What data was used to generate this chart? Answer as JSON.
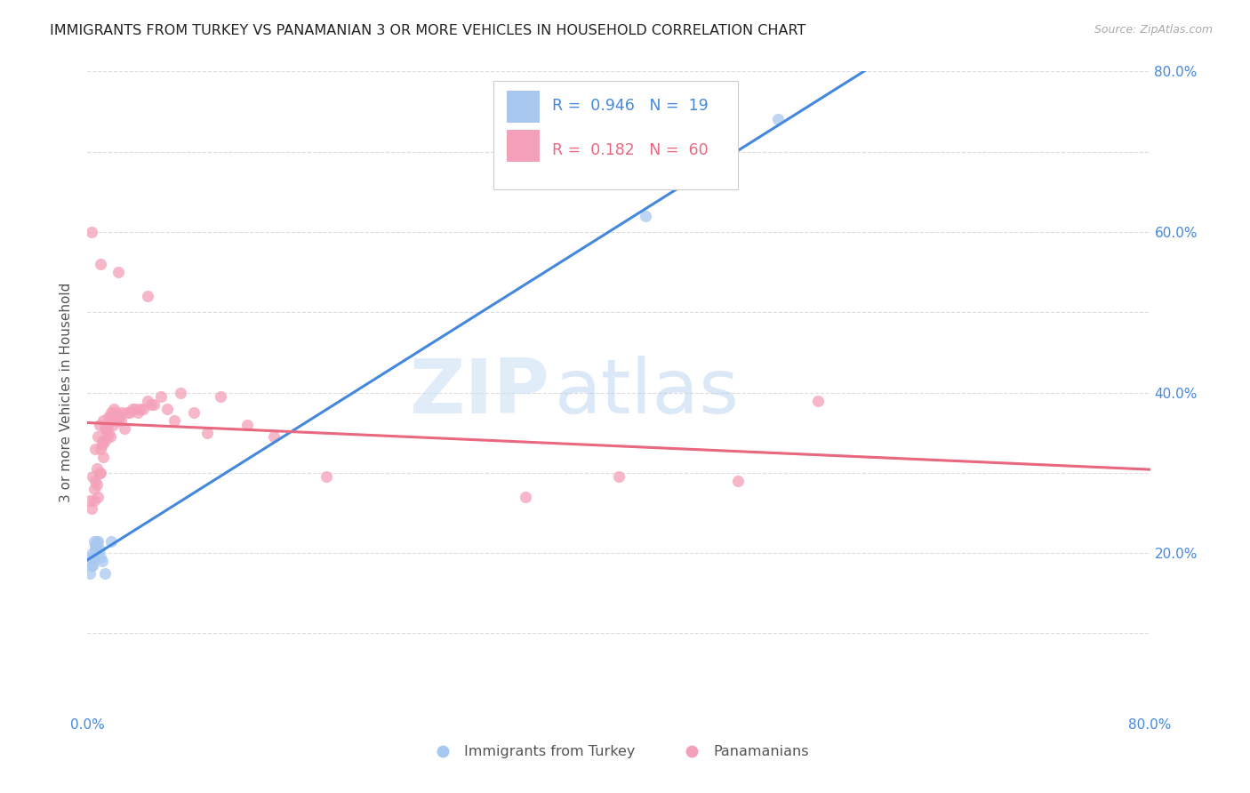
{
  "title": "IMMIGRANTS FROM TURKEY VS PANAMANIAN 3 OR MORE VEHICLES IN HOUSEHOLD CORRELATION CHART",
  "source": "Source: ZipAtlas.com",
  "ylabel": "3 or more Vehicles in Household",
  "xlim": [
    0.0,
    0.8
  ],
  "ylim": [
    0.0,
    0.8
  ],
  "blue_color": "#a8c8f0",
  "pink_color": "#f4a0b8",
  "blue_line_color": "#4488dd",
  "pink_line_color": "#e86880",
  "pink_dashed_color": "#f0b0c0",
  "legend_r_blue": "0.946",
  "legend_n_blue": "19",
  "legend_r_pink": "0.182",
  "legend_n_pink": "60",
  "legend_label_blue": "Immigrants from Turkey",
  "legend_label_pink": "Panamanians",
  "watermark_zip": "ZIP",
  "watermark_atlas": "atlas",
  "blue_points_x": [
    0.002,
    0.003,
    0.003,
    0.004,
    0.004,
    0.005,
    0.005,
    0.006,
    0.006,
    0.007,
    0.007,
    0.008,
    0.009,
    0.01,
    0.011,
    0.013,
    0.018,
    0.42,
    0.52
  ],
  "blue_points_y": [
    0.175,
    0.185,
    0.195,
    0.2,
    0.185,
    0.215,
    0.195,
    0.21,
    0.205,
    0.215,
    0.21,
    0.215,
    0.205,
    0.195,
    0.19,
    0.175,
    0.215,
    0.62,
    0.74
  ],
  "pink_points_x": [
    0.002,
    0.003,
    0.004,
    0.005,
    0.005,
    0.006,
    0.006,
    0.007,
    0.007,
    0.008,
    0.008,
    0.009,
    0.009,
    0.01,
    0.01,
    0.011,
    0.011,
    0.012,
    0.012,
    0.013,
    0.013,
    0.014,
    0.015,
    0.015,
    0.016,
    0.016,
    0.017,
    0.017,
    0.018,
    0.019,
    0.02,
    0.021,
    0.022,
    0.023,
    0.024,
    0.025,
    0.026,
    0.028,
    0.03,
    0.032,
    0.034,
    0.036,
    0.038,
    0.04,
    0.042,
    0.045,
    0.048,
    0.05,
    0.055,
    0.06,
    0.065,
    0.07,
    0.08,
    0.09,
    0.1,
    0.12,
    0.14,
    0.18,
    0.4,
    0.55
  ],
  "pink_points_y": [
    0.265,
    0.255,
    0.295,
    0.28,
    0.265,
    0.29,
    0.33,
    0.305,
    0.285,
    0.27,
    0.345,
    0.3,
    0.36,
    0.33,
    0.3,
    0.34,
    0.335,
    0.365,
    0.32,
    0.355,
    0.34,
    0.355,
    0.36,
    0.345,
    0.37,
    0.35,
    0.37,
    0.345,
    0.375,
    0.36,
    0.38,
    0.365,
    0.375,
    0.365,
    0.37,
    0.365,
    0.375,
    0.355,
    0.375,
    0.375,
    0.38,
    0.38,
    0.375,
    0.38,
    0.38,
    0.39,
    0.385,
    0.385,
    0.395,
    0.38,
    0.365,
    0.4,
    0.375,
    0.35,
    0.395,
    0.36,
    0.345,
    0.295,
    0.295,
    0.39
  ],
  "pink_outlier_x": [
    0.003,
    0.01,
    0.023,
    0.045,
    0.33,
    0.49
  ],
  "pink_outlier_y": [
    0.6,
    0.56,
    0.55,
    0.52,
    0.27,
    0.29
  ],
  "bg_color": "#ffffff",
  "grid_color": "#dddddd"
}
